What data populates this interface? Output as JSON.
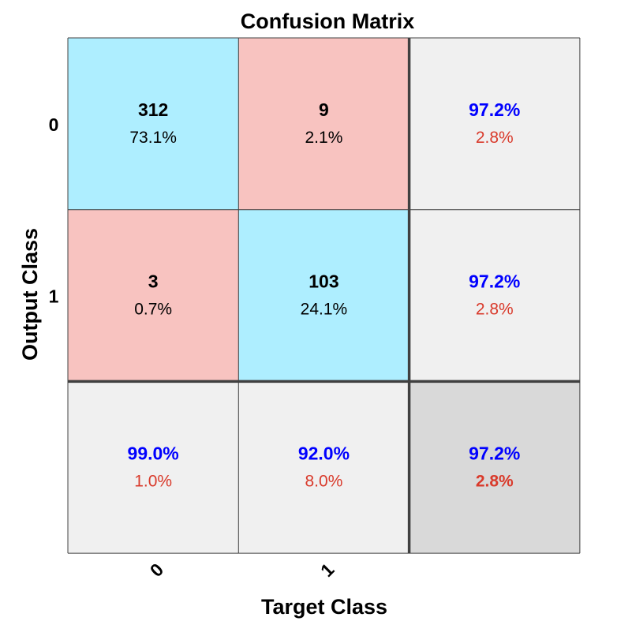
{
  "chart_data": {
    "type": "heatmap",
    "title": "Confusion Matrix",
    "xlabel": "Target Class",
    "ylabel": "Output Class",
    "x_tick_labels": [
      "0",
      "1"
    ],
    "y_tick_labels": [
      "0",
      "1"
    ],
    "matrix": [
      [
        {
          "count": "312",
          "percent": "73.1%",
          "kind": "correct"
        },
        {
          "count": "9",
          "percent": "2.1%",
          "kind": "error"
        }
      ],
      [
        {
          "count": "3",
          "percent": "0.7%",
          "kind": "error"
        },
        {
          "count": "103",
          "percent": "24.1%",
          "kind": "correct"
        }
      ]
    ],
    "row_summary": [
      {
        "correct": "97.2%",
        "error": "2.8%"
      },
      {
        "correct": "97.2%",
        "error": "2.8%"
      }
    ],
    "col_summary": [
      {
        "correct": "99.0%",
        "error": "1.0%"
      },
      {
        "correct": "92.0%",
        "error": "8.0%"
      }
    ],
    "overall": {
      "correct": "97.2%",
      "error": "2.8%"
    }
  },
  "colors": {
    "correct_cell": "#aeeeff",
    "error_cell": "#f8c3c0",
    "summary_cell": "#f0f0f0",
    "overall_cell": "#d9d9d9",
    "correct_text": "#0000ff",
    "error_text": "#d93a2b",
    "grid_line": "#404040"
  }
}
